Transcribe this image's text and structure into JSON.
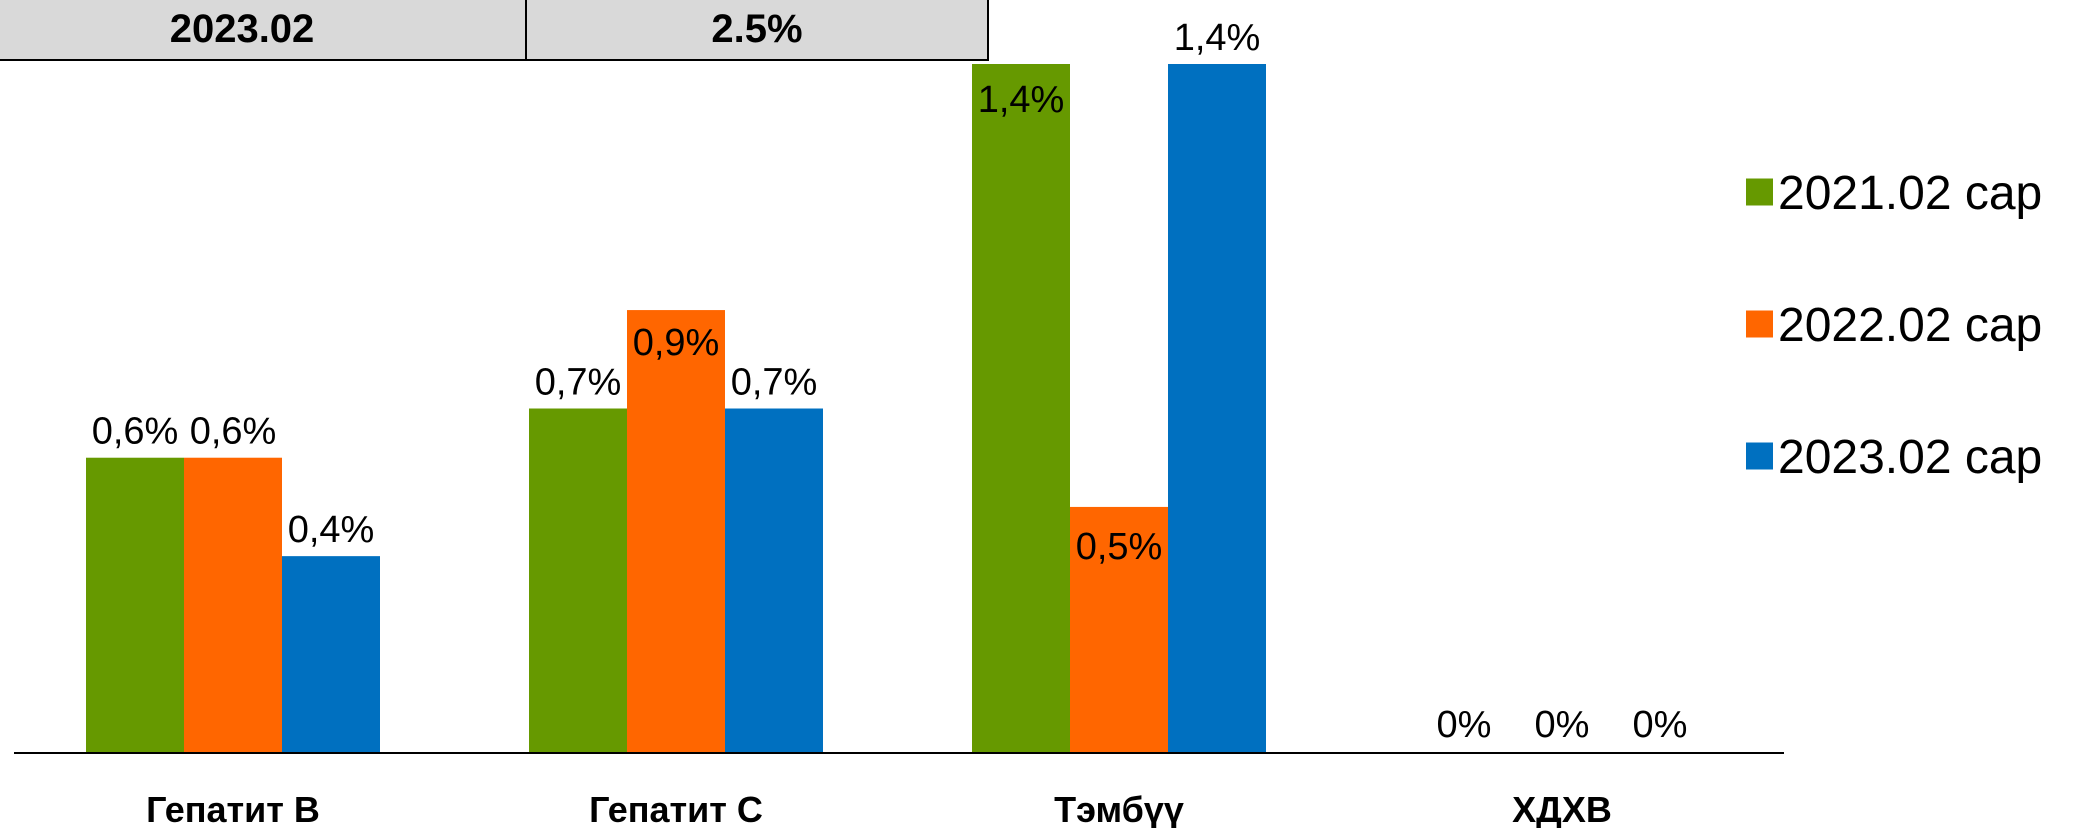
{
  "header_table": {
    "cells": [
      "2023.02",
      "2.5%"
    ]
  },
  "chart_data": {
    "type": "bar",
    "categories": [
      "Гепатит В",
      "Гепатит С",
      "Тэмбүү",
      "ХДХВ"
    ],
    "series": [
      {
        "name": "2021.02 сар",
        "color": "#669900",
        "values": [
          0.6,
          0.7,
          1.4,
          0
        ],
        "labels": [
          "0,6%",
          "0,7%",
          "1,4%",
          "0%"
        ]
      },
      {
        "name": "2022.02 сар",
        "color": "#FF6600",
        "values": [
          0.6,
          0.9,
          0.5,
          0
        ],
        "labels": [
          "0,6%",
          "0,9%",
          "0,5%",
          "0%"
        ]
      },
      {
        "name": "2023.02 сар",
        "color": "#0070C0",
        "values": [
          0.4,
          0.7,
          1.4,
          0
        ],
        "labels": [
          "0,4%",
          "0,7%",
          "1,4%",
          "0%"
        ]
      }
    ],
    "ylim": [
      0,
      1.4
    ],
    "legend_position": "right",
    "grid": false
  }
}
